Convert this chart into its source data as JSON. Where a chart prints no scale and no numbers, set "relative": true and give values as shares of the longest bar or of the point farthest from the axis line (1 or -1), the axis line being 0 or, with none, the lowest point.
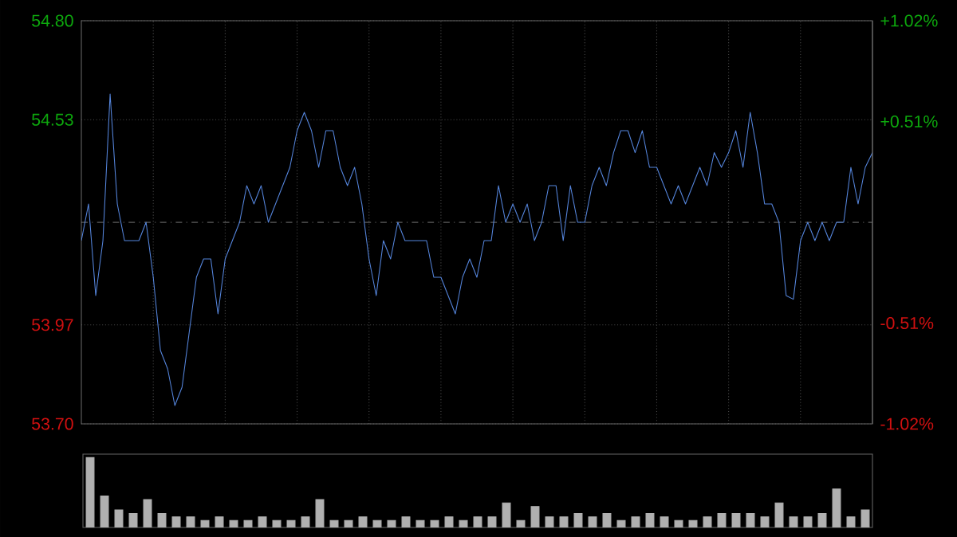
{
  "chart_data": [
    {
      "type": "line",
      "categories": [
        null,
        null,
        null,
        null,
        null,
        null,
        null,
        null,
        null,
        null,
        null,
        null,
        null,
        null,
        null,
        null,
        null,
        null,
        null,
        null,
        null,
        null,
        null,
        null,
        null,
        null,
        null,
        null,
        null,
        null,
        null,
        null,
        null,
        null,
        null,
        null,
        null,
        null,
        null,
        null,
        null,
        null,
        null,
        null,
        null,
        null,
        null,
        null,
        null,
        null,
        null,
        null,
        null,
        null,
        null,
        null,
        null,
        null,
        null,
        null,
        null,
        null,
        null,
        null,
        null,
        null,
        null,
        null,
        null,
        null,
        null,
        null,
        null,
        null,
        null,
        null,
        null,
        null,
        null,
        null,
        null,
        null,
        null,
        null,
        null,
        null,
        null,
        null,
        null,
        null,
        null,
        null,
        null,
        null,
        null,
        null,
        null,
        null,
        null,
        null,
        null,
        null,
        null,
        null,
        null,
        null,
        null,
        null,
        null,
        null,
        null
      ],
      "ylim": [
        53.7,
        54.8
      ],
      "yticks": [
        {
          "value": 54.8,
          "label": "54.80"
        },
        {
          "value": 54.53,
          "label": "54.53"
        },
        {
          "value": 53.97,
          "label": "53.97"
        },
        {
          "value": 53.7,
          "label": "53.70"
        }
      ],
      "y2lim": [
        -1.02,
        1.02
      ],
      "y2ticks": [
        {
          "value": 1.02,
          "label": "+1.02%"
        },
        {
          "value": 0.51,
          "label": "+0.51%"
        },
        {
          "value": -0.51,
          "label": "-0.51%"
        },
        {
          "value": -1.02,
          "label": "-1.02%"
        }
      ],
      "grid": true,
      "ref_lines": [
        {
          "axis": "y",
          "value": 54.25,
          "label": null,
          "color": "#888888",
          "line_style": "dashdot"
        }
      ],
      "series": [
        {
          "color": "#5585dc",
          "values": [
            54.2,
            54.3,
            54.05,
            54.2,
            54.6,
            54.3,
            54.2,
            54.2,
            54.2,
            54.25,
            54.1,
            53.9,
            53.85,
            53.75,
            53.8,
            53.95,
            54.1,
            54.15,
            54.15,
            54.0,
            54.15,
            54.2,
            54.25,
            54.35,
            54.3,
            54.35,
            54.25,
            54.3,
            54.35,
            54.4,
            54.5,
            54.55,
            54.5,
            54.4,
            54.5,
            54.5,
            54.4,
            54.35,
            54.4,
            54.3,
            54.15,
            54.05,
            54.2,
            54.15,
            54.25,
            54.2,
            54.2,
            54.2,
            54.2,
            54.1,
            54.1,
            54.05,
            54.0,
            54.1,
            54.15,
            54.1,
            54.2,
            54.2,
            54.35,
            54.25,
            54.3,
            54.25,
            54.3,
            54.2,
            54.25,
            54.35,
            54.35,
            54.2,
            54.35,
            54.25,
            54.25,
            54.35,
            54.4,
            54.35,
            54.44,
            54.5,
            54.5,
            54.44,
            54.5,
            54.4,
            54.4,
            54.35,
            54.3,
            54.35,
            54.3,
            54.35,
            54.4,
            54.35,
            54.44,
            54.4,
            54.44,
            54.5,
            54.4,
            54.55,
            54.44,
            54.3,
            54.3,
            54.25,
            54.05,
            54.04,
            54.2,
            54.25,
            54.2,
            54.25,
            54.2,
            54.25,
            54.25,
            54.4,
            54.3,
            54.4,
            54.44
          ]
        }
      ]
    },
    {
      "type": "bar",
      "relative": true,
      "color": "#b0b0b0",
      "categories": [
        null,
        null,
        null,
        null,
        null,
        null,
        null,
        null,
        null,
        null,
        null,
        null,
        null,
        null,
        null,
        null,
        null,
        null,
        null,
        null,
        null,
        null,
        null,
        null,
        null,
        null,
        null,
        null,
        null,
        null,
        null,
        null,
        null,
        null,
        null,
        null,
        null,
        null,
        null,
        null,
        null,
        null,
        null,
        null,
        null,
        null,
        null,
        null,
        null,
        null,
        null,
        null,
        null,
        null,
        null
      ],
      "values": [
        1.0,
        0.45,
        0.25,
        0.2,
        0.4,
        0.2,
        0.15,
        0.15,
        0.1,
        0.15,
        0.1,
        0.1,
        0.15,
        0.1,
        0.1,
        0.15,
        0.4,
        0.1,
        0.1,
        0.15,
        0.1,
        0.1,
        0.15,
        0.1,
        0.1,
        0.15,
        0.1,
        0.15,
        0.15,
        0.35,
        0.1,
        0.3,
        0.15,
        0.15,
        0.2,
        0.15,
        0.2,
        0.1,
        0.15,
        0.2,
        0.15,
        0.1,
        0.1,
        0.15,
        0.2,
        0.2,
        0.2,
        0.15,
        0.35,
        0.15,
        0.15,
        0.2,
        0.55,
        0.15,
        0.25
      ]
    }
  ]
}
